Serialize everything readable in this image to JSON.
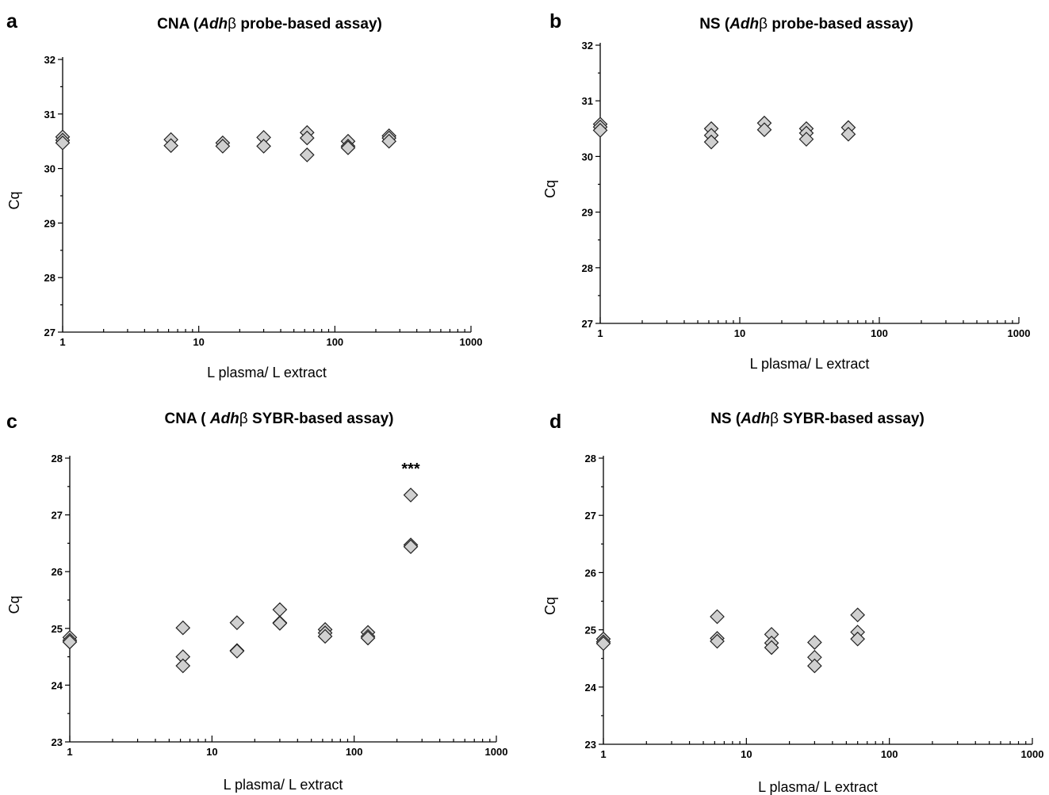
{
  "chart_data": [
    {
      "panel": "a",
      "type": "scatter",
      "title_parts": [
        "CNA (",
        "Adh",
        "β probe-based assay)"
      ],
      "xlabel": "L plasma/  L extract",
      "ylabel": "Cq",
      "x_scale": "log",
      "xlim": [
        1,
        1000
      ],
      "ylim": [
        27,
        32
      ],
      "x_ticks": [
        1,
        10,
        100,
        1000
      ],
      "y_ticks": [
        27,
        28,
        29,
        30,
        31,
        32
      ],
      "annotation": "",
      "points": [
        {
          "x": 1,
          "y": 30.58
        },
        {
          "x": 1,
          "y": 30.52
        },
        {
          "x": 1,
          "y": 30.47
        },
        {
          "x": 6.25,
          "y": 30.53
        },
        {
          "x": 6.25,
          "y": 30.42
        },
        {
          "x": 15,
          "y": 30.47
        },
        {
          "x": 15,
          "y": 30.41
        },
        {
          "x": 30,
          "y": 30.57
        },
        {
          "x": 30,
          "y": 30.41
        },
        {
          "x": 62.5,
          "y": 30.66
        },
        {
          "x": 62.5,
          "y": 30.56
        },
        {
          "x": 62.5,
          "y": 30.25
        },
        {
          "x": 125,
          "y": 30.5
        },
        {
          "x": 125,
          "y": 30.41
        },
        {
          "x": 125,
          "y": 30.38
        },
        {
          "x": 250,
          "y": 30.6
        },
        {
          "x": 250,
          "y": 30.56
        },
        {
          "x": 250,
          "y": 30.5
        }
      ]
    },
    {
      "panel": "b",
      "type": "scatter",
      "title_parts": [
        "NS (",
        "Adh",
        "β probe-based assay)"
      ],
      "xlabel": "L plasma/  L extract",
      "ylabel": "Cq",
      "x_scale": "log",
      "xlim": [
        1,
        1000
      ],
      "ylim": [
        27,
        32
      ],
      "x_ticks": [
        1,
        10,
        100,
        1000
      ],
      "y_ticks": [
        27,
        28,
        29,
        30,
        31,
        32
      ],
      "annotation": "",
      "points": [
        {
          "x": 1,
          "y": 30.58
        },
        {
          "x": 1,
          "y": 30.53
        },
        {
          "x": 1,
          "y": 30.47
        },
        {
          "x": 6.25,
          "y": 30.5
        },
        {
          "x": 6.25,
          "y": 30.38
        },
        {
          "x": 6.25,
          "y": 30.26
        },
        {
          "x": 15,
          "y": 30.6
        },
        {
          "x": 15,
          "y": 30.48
        },
        {
          "x": 30,
          "y": 30.5
        },
        {
          "x": 30,
          "y": 30.42
        },
        {
          "x": 30,
          "y": 30.31
        },
        {
          "x": 60,
          "y": 30.52
        },
        {
          "x": 60,
          "y": 30.4
        }
      ]
    },
    {
      "panel": "c",
      "type": "scatter",
      "title_parts": [
        "CNA ( ",
        "Adh",
        "β SYBR-based assay)"
      ],
      "xlabel": "L plasma/  L extract",
      "ylabel": "Cq",
      "x_scale": "log",
      "xlim": [
        1,
        1000
      ],
      "ylim": [
        23,
        28
      ],
      "x_ticks": [
        1,
        10,
        100,
        1000
      ],
      "y_ticks": [
        23,
        24,
        25,
        26,
        27,
        28
      ],
      "annotation": "***",
      "annotation_at": {
        "x": 250,
        "y": 27.72
      },
      "points": [
        {
          "x": 1,
          "y": 24.84
        },
        {
          "x": 1,
          "y": 24.79
        },
        {
          "x": 1,
          "y": 24.76
        },
        {
          "x": 6.25,
          "y": 25.01
        },
        {
          "x": 6.25,
          "y": 24.5
        },
        {
          "x": 6.25,
          "y": 24.34
        },
        {
          "x": 15,
          "y": 25.1
        },
        {
          "x": 15,
          "y": 24.61
        },
        {
          "x": 15,
          "y": 24.6
        },
        {
          "x": 30,
          "y": 25.33
        },
        {
          "x": 30,
          "y": 25.1
        },
        {
          "x": 30,
          "y": 25.09
        },
        {
          "x": 62.5,
          "y": 24.98
        },
        {
          "x": 62.5,
          "y": 24.92
        },
        {
          "x": 62.5,
          "y": 24.86
        },
        {
          "x": 125,
          "y": 24.93
        },
        {
          "x": 125,
          "y": 24.86
        },
        {
          "x": 125,
          "y": 24.83
        },
        {
          "x": 250,
          "y": 27.35
        },
        {
          "x": 250,
          "y": 26.47
        },
        {
          "x": 250,
          "y": 26.44
        }
      ]
    },
    {
      "panel": "d",
      "type": "scatter",
      "title_parts": [
        "NS (",
        "Adh",
        "β SYBR-based assay)"
      ],
      "xlabel": "L plasma/  L extract",
      "ylabel": "Cq",
      "x_scale": "log",
      "xlim": [
        1,
        1000
      ],
      "ylim": [
        23,
        28
      ],
      "x_ticks": [
        1,
        10,
        100,
        1000
      ],
      "y_ticks": [
        23,
        24,
        25,
        26,
        27,
        28
      ],
      "annotation": "",
      "points": [
        {
          "x": 1,
          "y": 24.84
        },
        {
          "x": 1,
          "y": 24.79
        },
        {
          "x": 1,
          "y": 24.76
        },
        {
          "x": 6.25,
          "y": 25.23
        },
        {
          "x": 6.25,
          "y": 24.85
        },
        {
          "x": 6.25,
          "y": 24.8
        },
        {
          "x": 15,
          "y": 24.92
        },
        {
          "x": 15,
          "y": 24.77
        },
        {
          "x": 15,
          "y": 24.69
        },
        {
          "x": 30,
          "y": 24.78
        },
        {
          "x": 30,
          "y": 24.52
        },
        {
          "x": 30,
          "y": 24.37
        },
        {
          "x": 60,
          "y": 25.26
        },
        {
          "x": 60,
          "y": 24.96
        },
        {
          "x": 60,
          "y": 24.84
        }
      ]
    }
  ]
}
